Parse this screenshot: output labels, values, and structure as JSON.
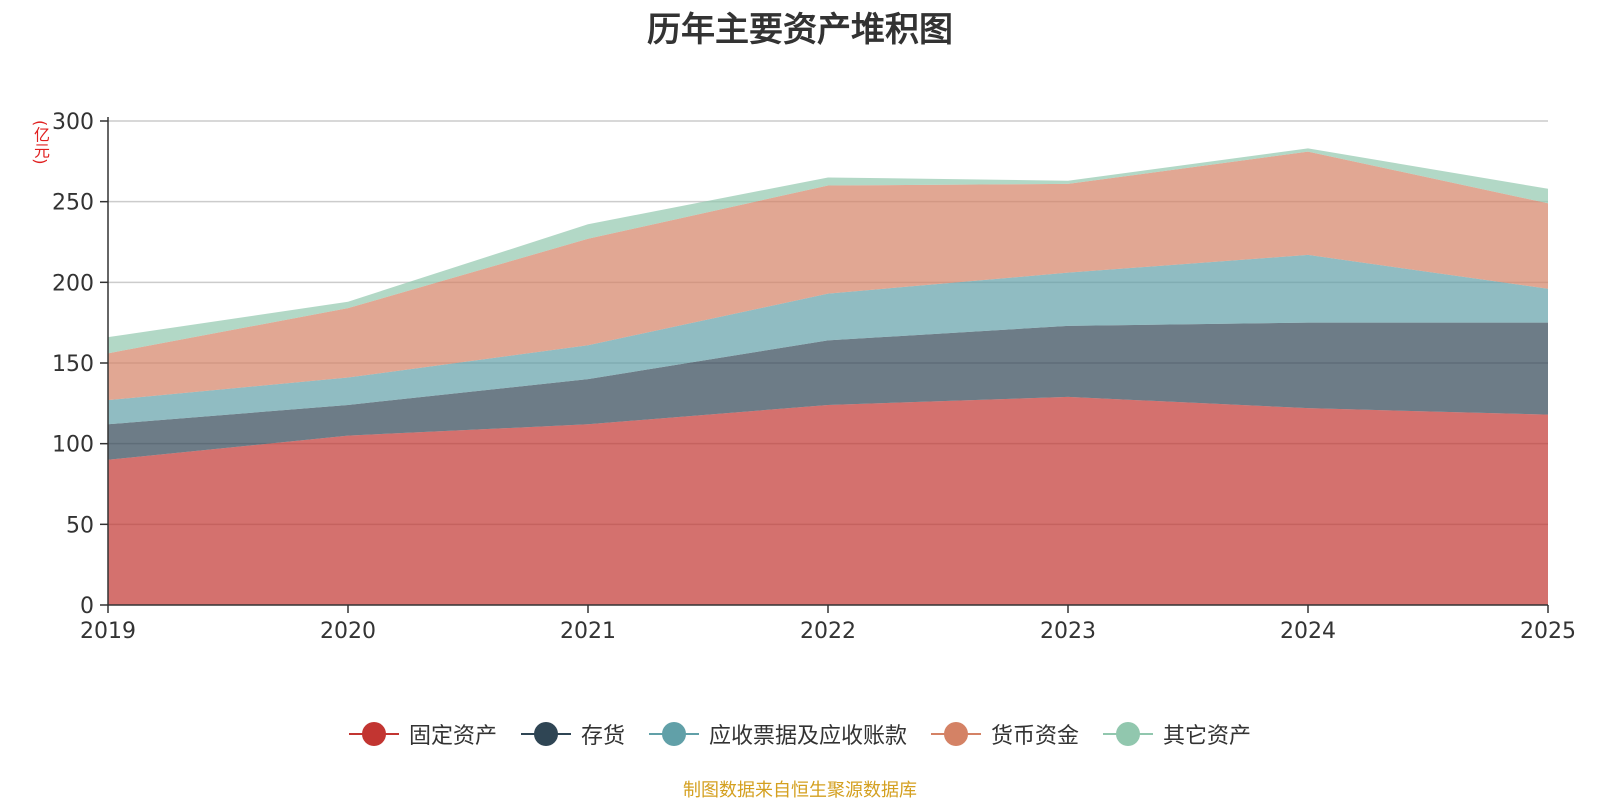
{
  "chart_data": {
    "type": "area",
    "stacked": true,
    "title": "历年主要资产堆积图",
    "unit_label": "(亿元)",
    "x": [
      "2019",
      "2020",
      "2021",
      "2022",
      "2023",
      "2024",
      "2025"
    ],
    "ylim": [
      0,
      300
    ],
    "yticks": [
      0,
      50,
      100,
      150,
      200,
      250,
      300
    ],
    "grid": true,
    "legend_position": "bottom",
    "series": [
      {
        "name": "固定资产",
        "color": "#c23531",
        "values": [
          90,
          105,
          112,
          124,
          129,
          122,
          118
        ]
      },
      {
        "name": "存货",
        "color": "#2f4554",
        "values": [
          22,
          19,
          28,
          40,
          44,
          53,
          57
        ]
      },
      {
        "name": "应收票据及应收账款",
        "color": "#61a0a8",
        "values": [
          15,
          17,
          21,
          29,
          33,
          42,
          21
        ]
      },
      {
        "name": "货币资金",
        "color": "#d48265",
        "values": [
          29,
          43,
          66,
          67,
          55,
          64,
          53
        ]
      },
      {
        "name": "其它资产",
        "color": "#91c7ae",
        "values": [
          10,
          4,
          9,
          5,
          2,
          2,
          9
        ]
      }
    ]
  },
  "footer": "制图数据来自恒生聚源数据库"
}
